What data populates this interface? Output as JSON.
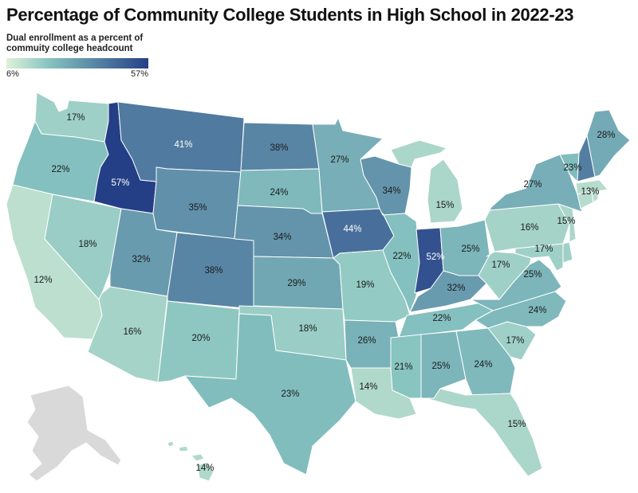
{
  "title": "Percentage of Community College Students in High School in 2022-23",
  "legend": {
    "title_line1": "Dual enrollment as a percent of",
    "title_line2": "commuity college headcount",
    "min_label": "6%",
    "max_label": "57%",
    "min_value": 6,
    "max_value": 57,
    "color_low": "#dff1d8",
    "color_mid": "#86c3c0",
    "color_high": "#253f86"
  },
  "no_data_color": "#d9d9d9",
  "states": [
    {
      "code": "WA",
      "value": 17,
      "label": "17%"
    },
    {
      "code": "OR",
      "value": 22,
      "label": "22%"
    },
    {
      "code": "CA",
      "value": 12,
      "label": "12%"
    },
    {
      "code": "NV",
      "value": 18,
      "label": "18%"
    },
    {
      "code": "ID",
      "value": 57,
      "label": "57%"
    },
    {
      "code": "MT",
      "value": 41,
      "label": "41%"
    },
    {
      "code": "WY",
      "value": 35,
      "label": "35%"
    },
    {
      "code": "UT",
      "value": 32,
      "label": "32%"
    },
    {
      "code": "AZ",
      "value": 16,
      "label": "16%"
    },
    {
      "code": "CO",
      "value": 38,
      "label": "38%"
    },
    {
      "code": "NM",
      "value": 20,
      "label": "20%"
    },
    {
      "code": "ND",
      "value": 38,
      "label": "38%"
    },
    {
      "code": "SD",
      "value": 24,
      "label": "24%"
    },
    {
      "code": "NE",
      "value": 34,
      "label": "34%"
    },
    {
      "code": "KS",
      "value": 29,
      "label": "29%"
    },
    {
      "code": "OK",
      "value": 18,
      "label": "18%"
    },
    {
      "code": "TX",
      "value": 23,
      "label": "23%"
    },
    {
      "code": "MN",
      "value": 27,
      "label": "27%"
    },
    {
      "code": "IA",
      "value": 44,
      "label": "44%"
    },
    {
      "code": "MO",
      "value": 19,
      "label": "19%"
    },
    {
      "code": "AR",
      "value": 26,
      "label": "26%"
    },
    {
      "code": "LA",
      "value": 14,
      "label": "14%"
    },
    {
      "code": "WI",
      "value": 34,
      "label": "34%"
    },
    {
      "code": "IL",
      "value": 22,
      "label": "22%"
    },
    {
      "code": "MI",
      "value": 15,
      "label": "15%"
    },
    {
      "code": "IN",
      "value": 52,
      "label": "52%"
    },
    {
      "code": "OH",
      "value": 25,
      "label": "25%"
    },
    {
      "code": "KY",
      "value": 32,
      "label": "32%"
    },
    {
      "code": "TN",
      "value": 22,
      "label": "22%"
    },
    {
      "code": "MS",
      "value": 21,
      "label": "21%"
    },
    {
      "code": "AL",
      "value": 25,
      "label": "25%"
    },
    {
      "code": "GA",
      "value": 24,
      "label": "24%"
    },
    {
      "code": "FL",
      "value": 15,
      "label": "15%"
    },
    {
      "code": "SC",
      "value": 17,
      "label": "17%"
    },
    {
      "code": "NC",
      "value": 24,
      "label": "24%"
    },
    {
      "code": "VA",
      "value": 25,
      "label": "25%"
    },
    {
      "code": "WV",
      "value": 17,
      "label": "17%"
    },
    {
      "code": "MD",
      "value": 17,
      "label": "17%"
    },
    {
      "code": "DE",
      "value": 17,
      "label": ""
    },
    {
      "code": "PA",
      "value": 16,
      "label": "16%"
    },
    {
      "code": "NJ",
      "value": 15,
      "label": "15%"
    },
    {
      "code": "NY",
      "value": 27,
      "label": "27%"
    },
    {
      "code": "CT",
      "value": 13,
      "label": ""
    },
    {
      "code": "RI",
      "value": 13,
      "label": ""
    },
    {
      "code": "MA",
      "value": 13,
      "label": "13%"
    },
    {
      "code": "VT",
      "value": 23,
      "label": "23%"
    },
    {
      "code": "NH",
      "value": 40,
      "label": ""
    },
    {
      "code": "ME",
      "value": 28,
      "label": "28%"
    },
    {
      "code": "HI",
      "value": 14,
      "label": "14%"
    },
    {
      "code": "AK",
      "value": null,
      "label": ""
    }
  ]
}
